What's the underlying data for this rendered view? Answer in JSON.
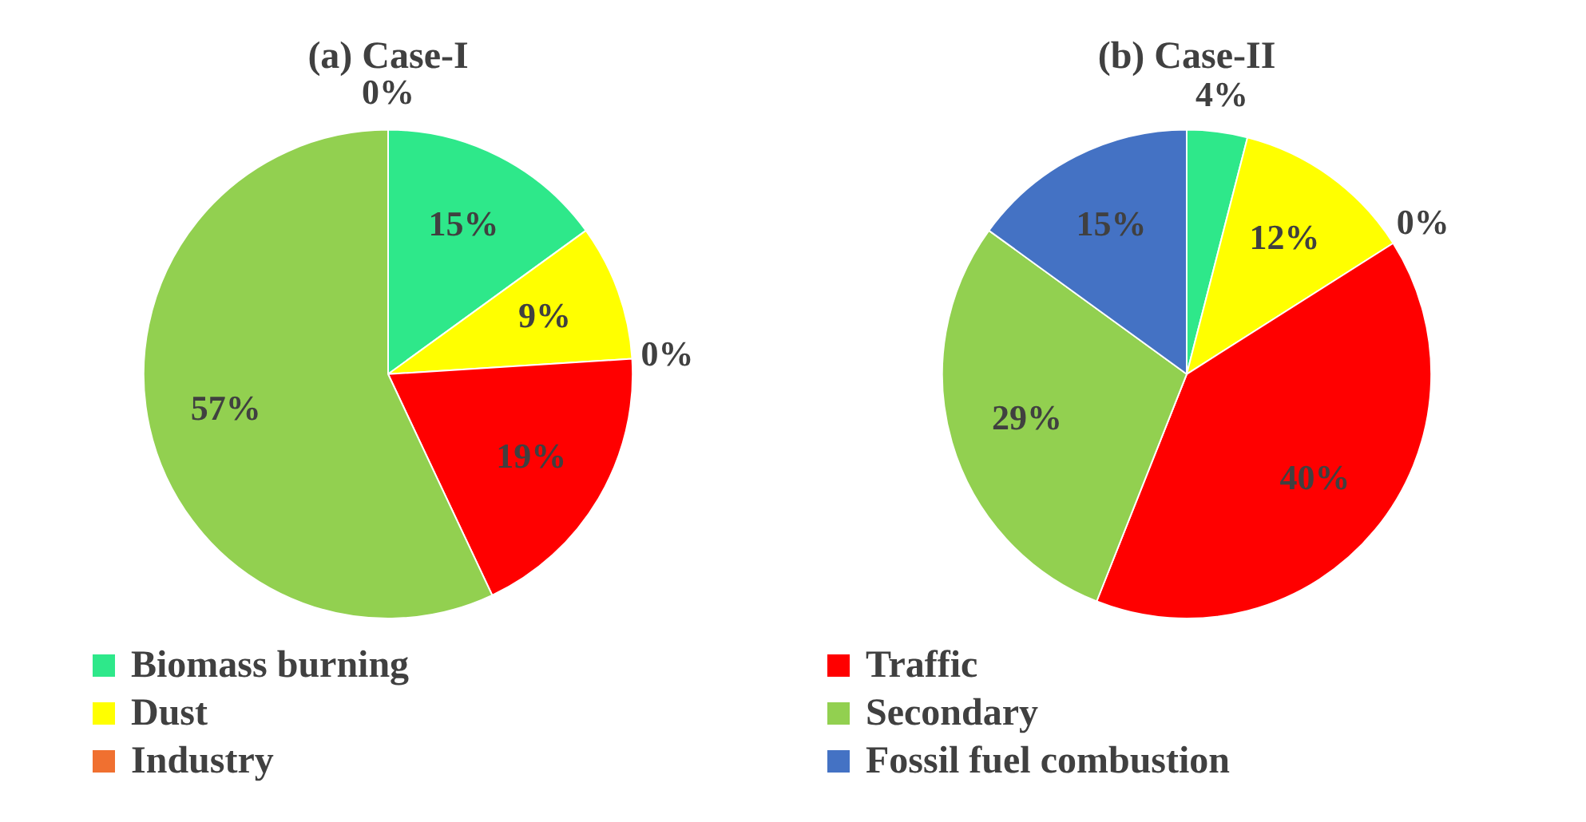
{
  "chart_data": [
    {
      "type": "pie",
      "title": "(a) Case-I",
      "categories": [
        "Biomass burning",
        "Dust",
        "Industry",
        "Traffic",
        "Secondary",
        "Fossil fuel combustion"
      ],
      "values": [
        15,
        9,
        0,
        19,
        57,
        0
      ],
      "value_labels": [
        "15%",
        "9%",
        "0%",
        "19%",
        "57%",
        "0%"
      ],
      "colors": [
        "#2ee88a",
        "#ffff00",
        "#f07030",
        "#ff0000",
        "#92d050",
        "#4472c4"
      ],
      "legend": "bottom"
    },
    {
      "type": "pie",
      "title": "(b) Case-II",
      "categories": [
        null,
        null,
        null,
        null,
        null,
        null
      ],
      "values": [
        4,
        12,
        0,
        40,
        29,
        15
      ],
      "value_labels": [
        "4%",
        "12%",
        "0%",
        "40%",
        "29%",
        "15%"
      ],
      "colors": [
        "#2ee88a",
        "#ffff00",
        "#f07030",
        "#ff0000",
        "#92d050",
        "#4472c4"
      ]
    }
  ]
}
